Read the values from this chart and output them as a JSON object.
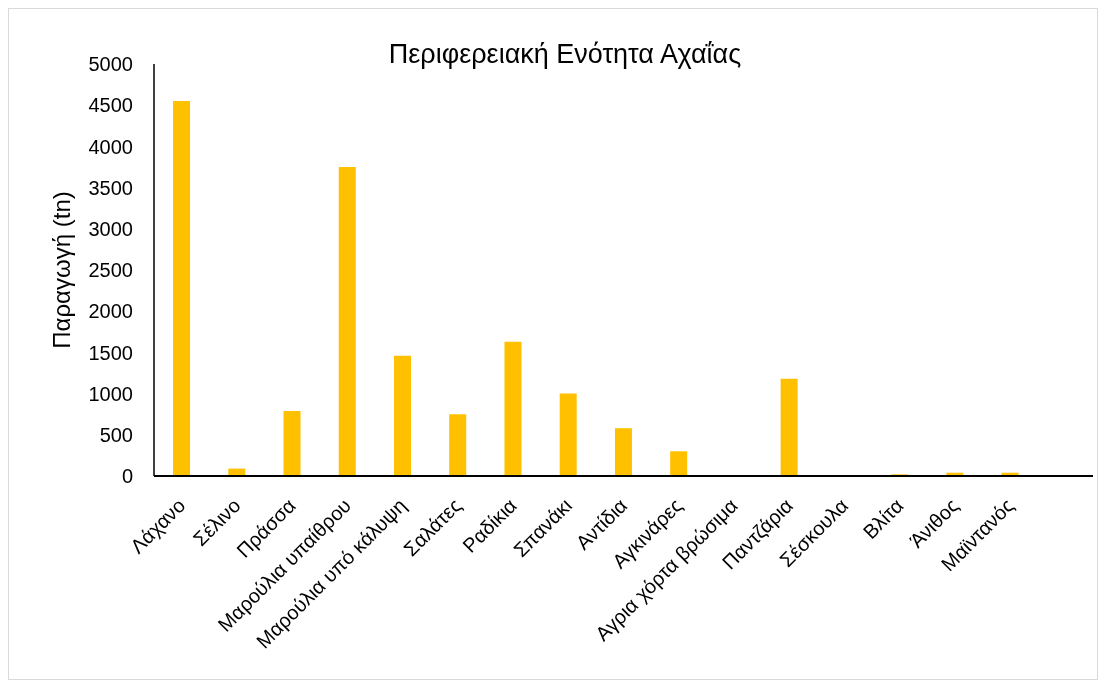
{
  "chart_data": {
    "type": "bar",
    "title": "Περιφερειακή Ενότητα Αχαΐας",
    "ylabel": "Παραγωγή (tn)",
    "categories": [
      "Λάχανο",
      "Σέλινο",
      "Πράσσα",
      "Μαρούλια υπαίθρου",
      "Μαρούλια υπό κάλυψη",
      "Σαλάτες",
      "Ραδίκια",
      "Σπανάκι",
      "Αντίδια",
      "Αγκινάρες",
      "Αγρια χόρτα βρώσιμα",
      "Παντζάρια",
      "Σέσκουλα",
      "Βλίτα",
      "Άνιθος",
      "Μαϊντανός",
      null
    ],
    "values": [
      4550,
      90,
      790,
      3750,
      1460,
      750,
      1630,
      1000,
      580,
      300,
      0,
      1180,
      0,
      20,
      40,
      40,
      null
    ],
    "color": "#ffc000",
    "ylim": [
      0,
      5000
    ],
    "yticks": [
      0,
      500,
      1000,
      1500,
      2000,
      2500,
      3000,
      3500,
      4000,
      4500,
      5000
    ]
  }
}
